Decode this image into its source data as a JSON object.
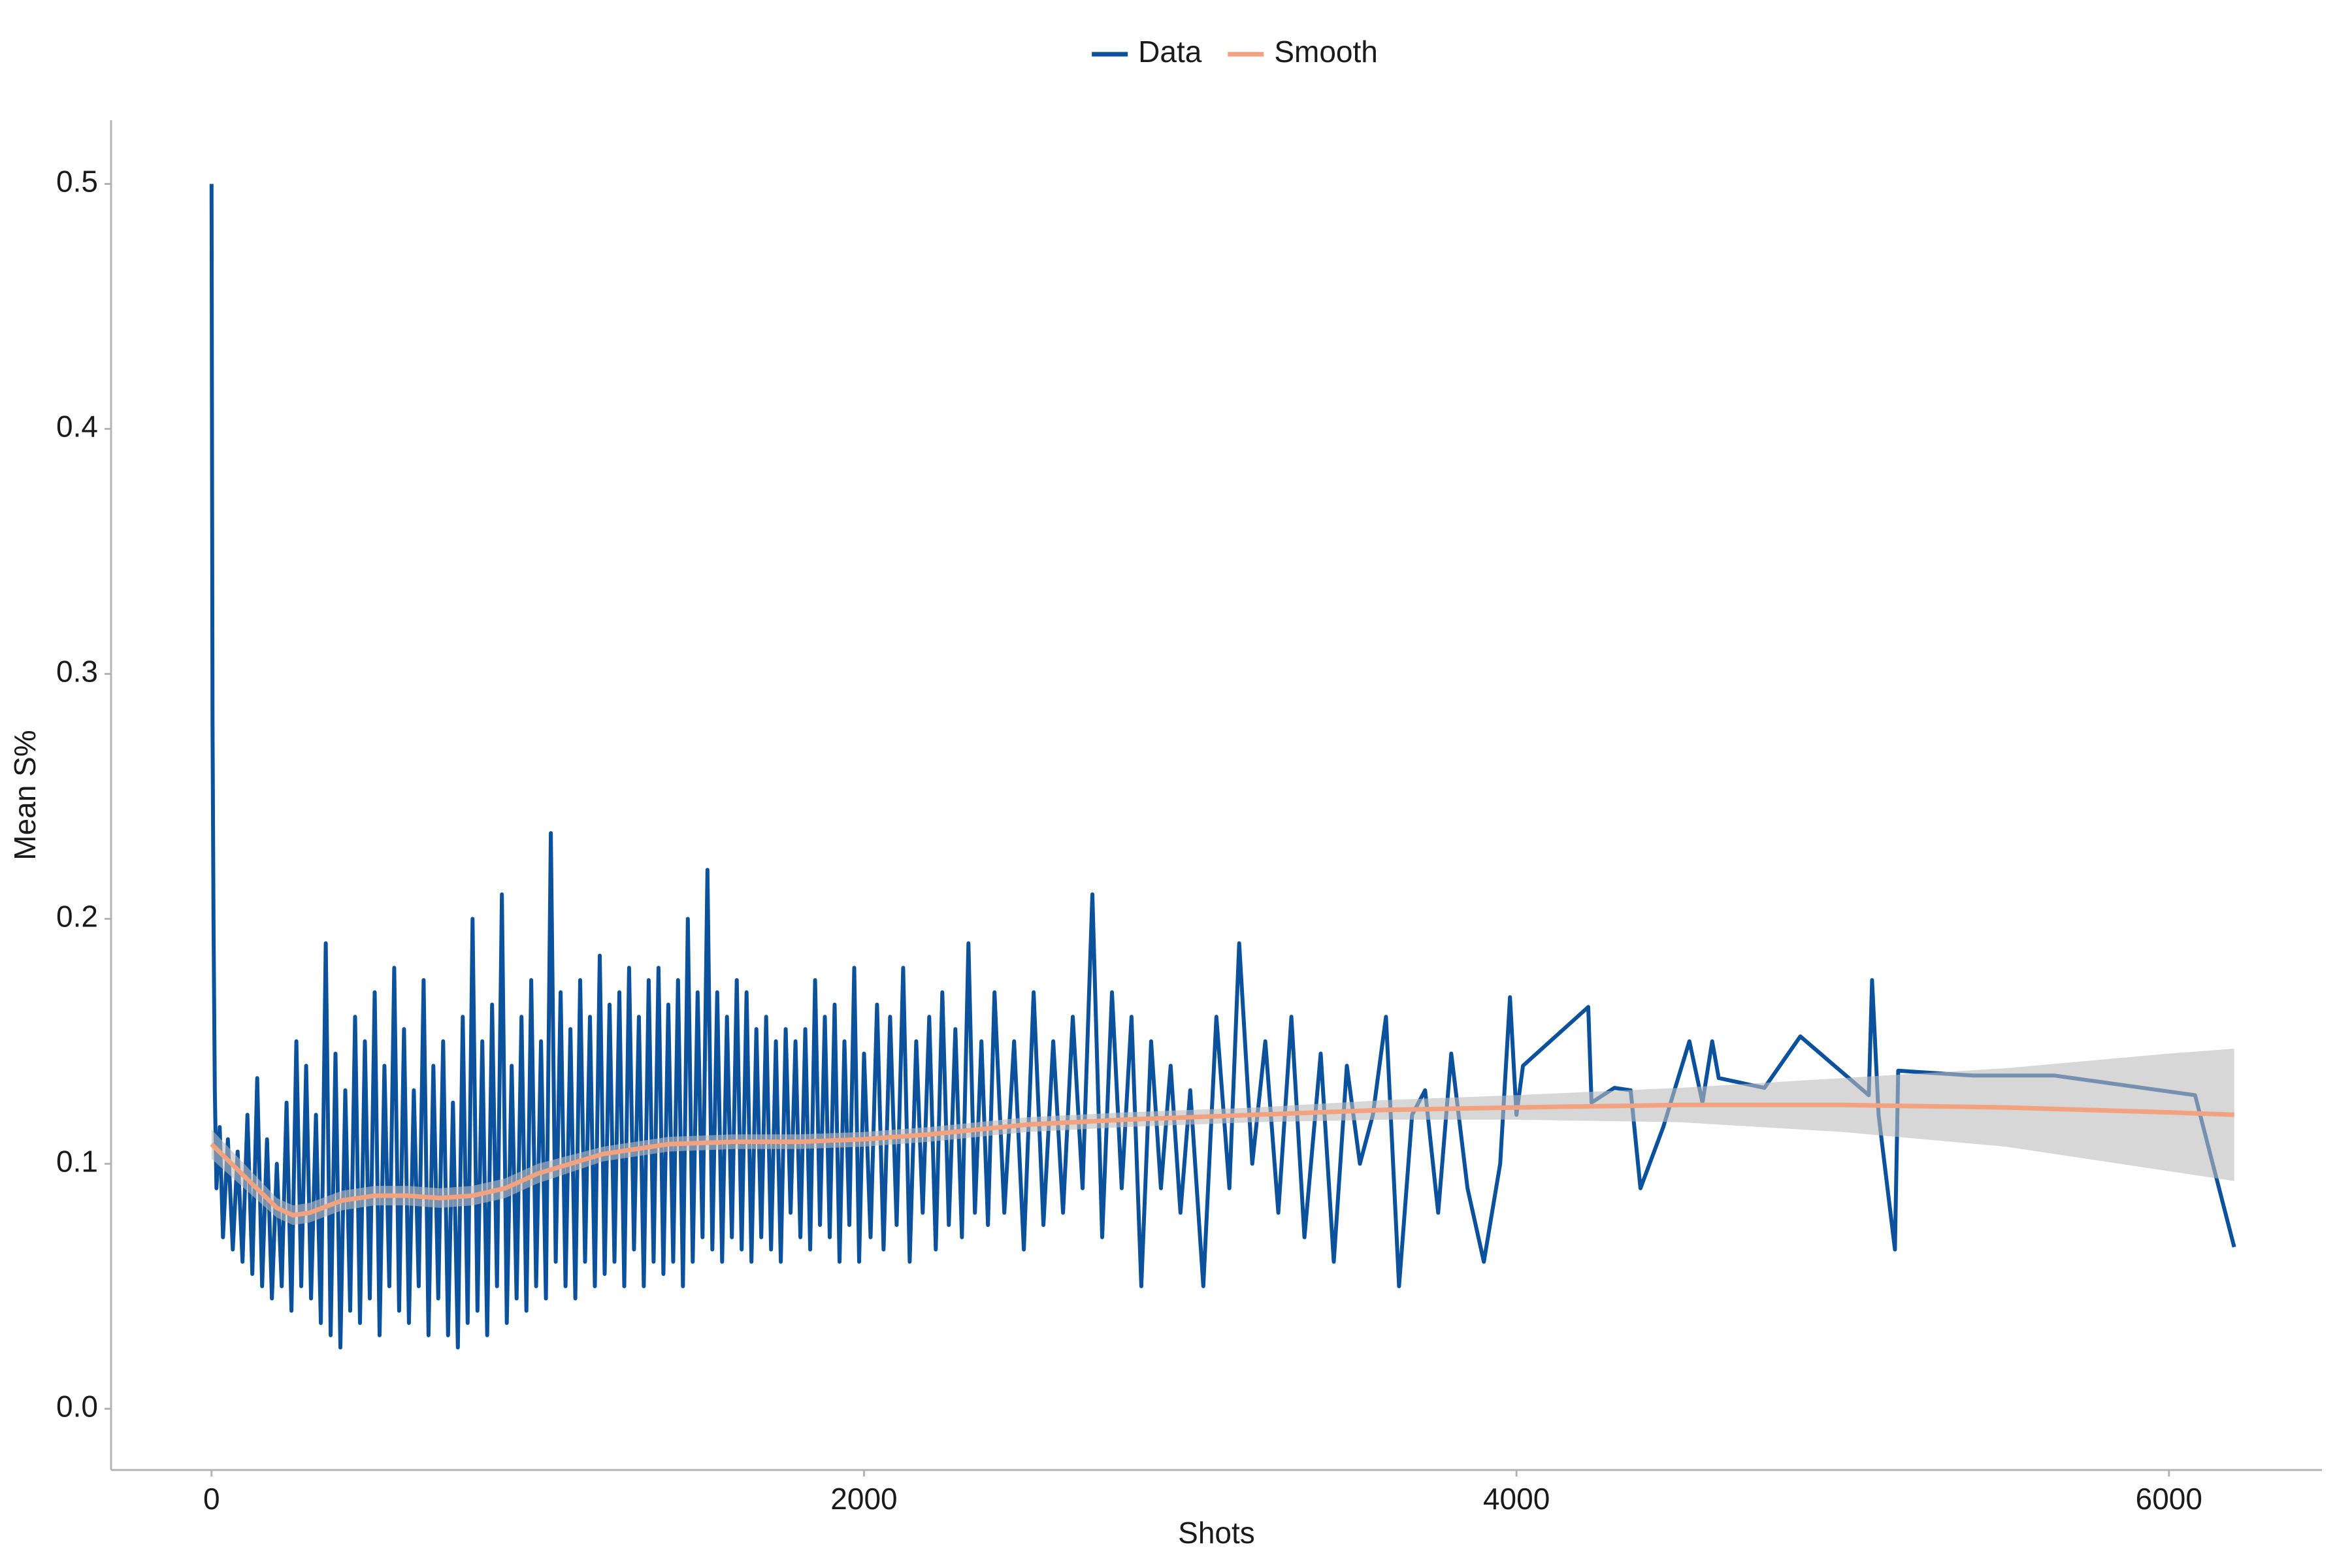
{
  "chart_data": {
    "type": "line",
    "x_label": "Shots",
    "y_label": "Mean S%",
    "xlim": [
      -308,
      6469
    ],
    "ylim": [
      -0.025,
      0.526
    ],
    "xticks": [
      0,
      2000,
      4000,
      6000
    ],
    "yticks": [
      {
        "value": 0,
        "label": "0.0"
      },
      {
        "value": 0.1,
        "label": "0.1"
      },
      {
        "value": 0.2,
        "label": "0.2"
      },
      {
        "value": 0.3,
        "label": "0.3"
      },
      {
        "value": 0.4,
        "label": "0.4"
      },
      {
        "value": 0.5,
        "label": "0.5"
      }
    ],
    "legend": "top",
    "grid": false,
    "band_color": "#bdbdbd",
    "series": [
      {
        "name": "Data",
        "color": "#0b519c",
        "x": [
          0,
          3,
          6,
          10,
          15,
          25,
          35,
          50,
          65,
          80,
          95,
          110,
          125,
          140,
          155,
          170,
          185,
          200,
          215,
          230,
          245,
          260,
          275,
          290,
          305,
          320,
          335,
          350,
          365,
          380,
          395,
          410,
          425,
          440,
          455,
          470,
          485,
          500,
          515,
          530,
          545,
          560,
          575,
          590,
          605,
          620,
          635,
          650,
          665,
          680,
          695,
          710,
          725,
          740,
          755,
          770,
          785,
          800,
          815,
          830,
          845,
          860,
          875,
          890,
          905,
          920,
          935,
          950,
          965,
          980,
          995,
          1010,
          1025,
          1040,
          1055,
          1070,
          1085,
          1100,
          1115,
          1130,
          1145,
          1160,
          1175,
          1190,
          1205,
          1220,
          1235,
          1250,
          1265,
          1280,
          1295,
          1310,
          1325,
          1340,
          1355,
          1370,
          1385,
          1400,
          1415,
          1430,
          1445,
          1460,
          1475,
          1490,
          1505,
          1520,
          1535,
          1550,
          1565,
          1580,
          1595,
          1610,
          1625,
          1640,
          1655,
          1670,
          1685,
          1700,
          1715,
          1730,
          1745,
          1760,
          1775,
          1790,
          1805,
          1820,
          1835,
          1850,
          1865,
          1880,
          1895,
          1910,
          1925,
          1940,
          1955,
          1970,
          1985,
          2000,
          2020,
          2040,
          2060,
          2080,
          2100,
          2120,
          2140,
          2160,
          2180,
          2200,
          2220,
          2240,
          2260,
          2280,
          2300,
          2320,
          2340,
          2360,
          2380,
          2400,
          2430,
          2460,
          2490,
          2520,
          2550,
          2580,
          2610,
          2640,
          2670,
          2700,
          2730,
          2760,
          2790,
          2820,
          2850,
          2880,
          2910,
          2940,
          2970,
          3000,
          3040,
          3080,
          3120,
          3150,
          3190,
          3230,
          3270,
          3310,
          3350,
          3400,
          3440,
          3480,
          3520,
          3560,
          3600,
          3640,
          3680,
          3720,
          3760,
          3800,
          3850,
          3900,
          3950,
          3980,
          4000,
          4020,
          4220,
          4230,
          4300,
          4350,
          4380,
          4450,
          4530,
          4570,
          4600,
          4620,
          4760,
          4870,
          5080,
          5090,
          5110,
          5160,
          5170,
          5400,
          5650,
          6080,
          6200
        ],
        "values": [
          0.5,
          0.28,
          0.2,
          0.13,
          0.09,
          0.115,
          0.07,
          0.11,
          0.065,
          0.105,
          0.06,
          0.12,
          0.055,
          0.135,
          0.05,
          0.11,
          0.045,
          0.1,
          0.05,
          0.125,
          0.04,
          0.15,
          0.05,
          0.14,
          0.045,
          0.12,
          0.035,
          0.19,
          0.03,
          0.145,
          0.025,
          0.13,
          0.04,
          0.16,
          0.035,
          0.15,
          0.045,
          0.17,
          0.03,
          0.14,
          0.05,
          0.18,
          0.04,
          0.155,
          0.035,
          0.13,
          0.05,
          0.175,
          0.03,
          0.14,
          0.045,
          0.15,
          0.03,
          0.125,
          0.025,
          0.16,
          0.035,
          0.2,
          0.04,
          0.15,
          0.03,
          0.165,
          0.05,
          0.21,
          0.035,
          0.14,
          0.045,
          0.16,
          0.04,
          0.175,
          0.05,
          0.15,
          0.045,
          0.235,
          0.06,
          0.17,
          0.05,
          0.155,
          0.045,
          0.175,
          0.06,
          0.16,
          0.05,
          0.185,
          0.055,
          0.165,
          0.06,
          0.17,
          0.05,
          0.18,
          0.065,
          0.16,
          0.05,
          0.175,
          0.06,
          0.18,
          0.055,
          0.165,
          0.06,
          0.175,
          0.05,
          0.2,
          0.06,
          0.17,
          0.07,
          0.22,
          0.065,
          0.17,
          0.06,
          0.16,
          0.07,
          0.175,
          0.065,
          0.17,
          0.06,
          0.155,
          0.07,
          0.16,
          0.065,
          0.15,
          0.06,
          0.155,
          0.08,
          0.15,
          0.07,
          0.155,
          0.065,
          0.175,
          0.075,
          0.16,
          0.07,
          0.165,
          0.06,
          0.15,
          0.075,
          0.18,
          0.06,
          0.145,
          0.07,
          0.165,
          0.065,
          0.16,
          0.075,
          0.18,
          0.06,
          0.15,
          0.08,
          0.16,
          0.065,
          0.17,
          0.075,
          0.155,
          0.07,
          0.19,
          0.08,
          0.15,
          0.075,
          0.17,
          0.08,
          0.15,
          0.065,
          0.17,
          0.075,
          0.15,
          0.08,
          0.16,
          0.09,
          0.21,
          0.07,
          0.17,
          0.09,
          0.16,
          0.05,
          0.15,
          0.09,
          0.14,
          0.08,
          0.13,
          0.05,
          0.16,
          0.09,
          0.19,
          0.1,
          0.15,
          0.08,
          0.16,
          0.07,
          0.145,
          0.06,
          0.14,
          0.1,
          0.12,
          0.16,
          0.05,
          0.12,
          0.13,
          0.08,
          0.145,
          0.09,
          0.06,
          0.1,
          0.168,
          0.12,
          0.14,
          0.164,
          0.125,
          0.131,
          0.13,
          0.09,
          0.115,
          0.15,
          0.125,
          0.15,
          0.135,
          0.131,
          0.152,
          0.128,
          0.175,
          0.12,
          0.065,
          0.138,
          0.136,
          0.136,
          0.128,
          0.066
        ]
      },
      {
        "name": "Smooth",
        "color": "#f2a27e",
        "x": [
          0,
          100,
          200,
          250,
          300,
          400,
          500,
          600,
          700,
          800,
          900,
          1000,
          1200,
          1400,
          1600,
          1800,
          2000,
          2200,
          2500,
          2800,
          3200,
          3600,
          4000,
          4500,
          5000,
          5500,
          6000,
          6200
        ],
        "values": [
          0.108,
          0.095,
          0.082,
          0.079,
          0.08,
          0.085,
          0.087,
          0.087,
          0.086,
          0.087,
          0.09,
          0.096,
          0.104,
          0.108,
          0.109,
          0.109,
          0.11,
          0.112,
          0.116,
          0.118,
          0.12,
          0.122,
          0.123,
          0.124,
          0.124,
          0.123,
          0.121,
          0.12
        ],
        "lower": [
          0.102,
          0.09,
          0.078,
          0.075,
          0.076,
          0.081,
          0.083,
          0.083,
          0.082,
          0.083,
          0.086,
          0.092,
          0.101,
          0.105,
          0.106,
          0.106,
          0.107,
          0.109,
          0.113,
          0.115,
          0.117,
          0.118,
          0.118,
          0.117,
          0.113,
          0.107,
          0.097,
          0.093
        ],
        "upper": [
          0.114,
          0.1,
          0.086,
          0.083,
          0.084,
          0.089,
          0.091,
          0.091,
          0.09,
          0.091,
          0.094,
          0.1,
          0.107,
          0.111,
          0.112,
          0.112,
          0.113,
          0.115,
          0.119,
          0.121,
          0.123,
          0.126,
          0.128,
          0.131,
          0.135,
          0.139,
          0.145,
          0.147
        ]
      }
    ]
  }
}
